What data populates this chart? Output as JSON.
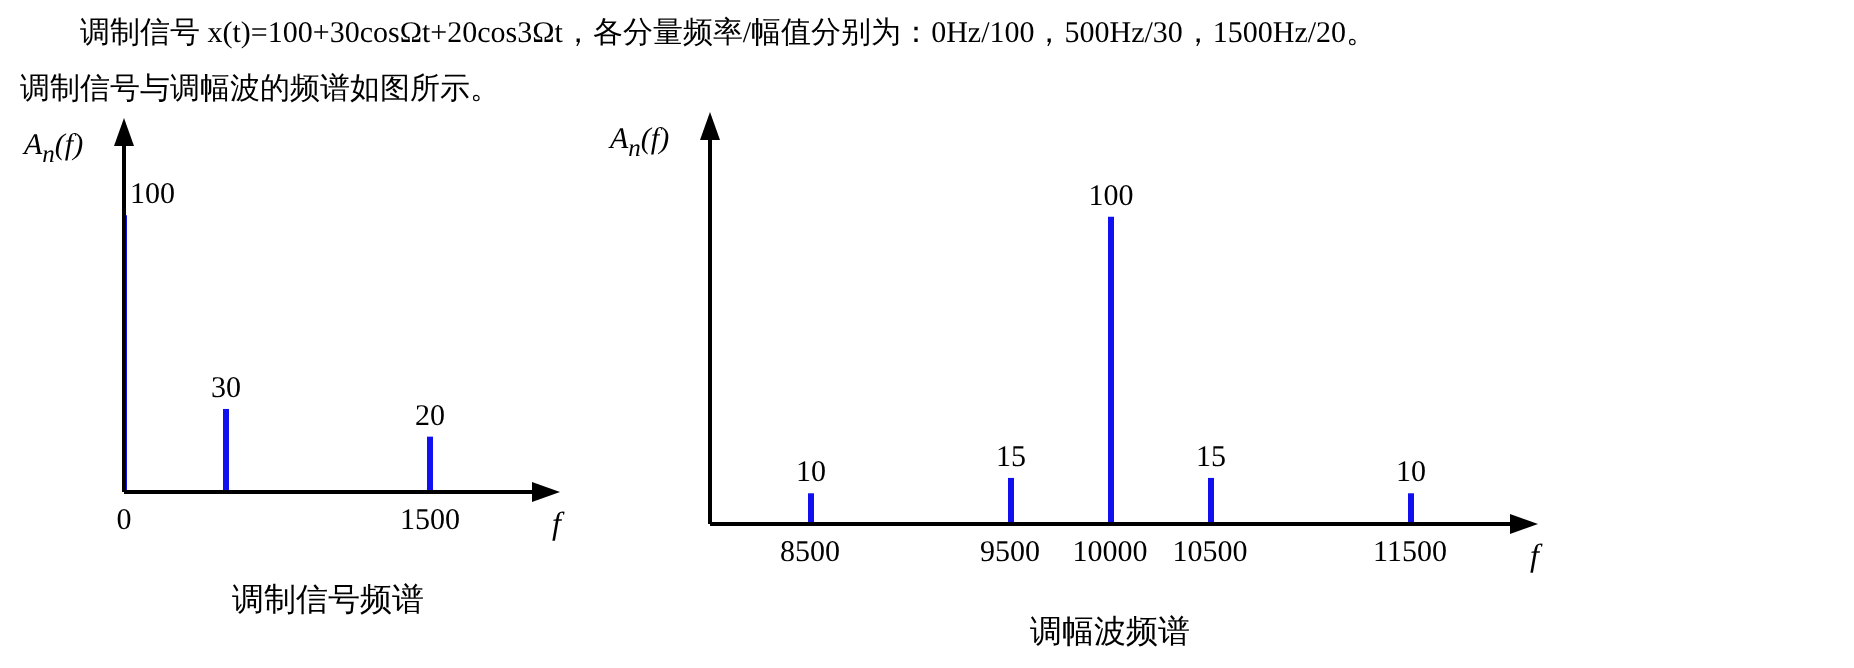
{
  "chart_data": [
    {
      "type": "bar",
      "title": "调制信号 x(t)=100+30cosΩt+20cos3Ωt，各分量频率/幅值分别为：0Hz/100，500Hz/30，1500Hz/20。",
      "subtitle": "调制信号与调幅波的频谱如图所示。",
      "xlabel": "f",
      "ylabel": "A$_{n}$(f)",
      "x": [
        0,
        500,
        1500
      ],
      "values": [
        100,
        30,
        20
      ],
      "color": "#1010f0",
      "xlim": [
        0,
        2000
      ],
      "xticks": [
        0,
        1500
      ],
      "data_labels": true,
      "tick_labels": "x",
      "annotations": [
        "调制信号频谱"
      ]
    },
    {
      "type": "bar",
      "xlabel": "f",
      "ylabel": "A$_{n}$(f)",
      "x": [
        8500,
        9500,
        10000,
        10500,
        11500
      ],
      "values": [
        10,
        15,
        100,
        15,
        10
      ],
      "color": "#1010f0",
      "xlim": [
        8000,
        12000
      ],
      "xticks": [
        8500,
        9500,
        10000,
        10500,
        11500
      ],
      "data_labels": true,
      "tick_labels": "x",
      "annotations": [
        "调幅波频谱"
      ]
    }
  ]
}
